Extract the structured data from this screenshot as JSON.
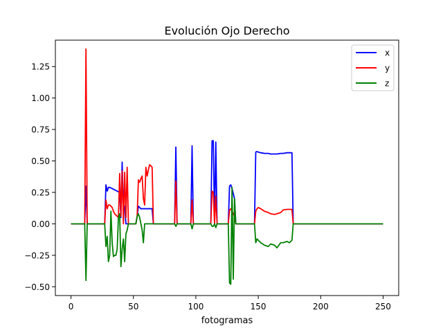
{
  "chart_data": {
    "type": "line",
    "title": "Evolución Ojo Derecho",
    "xlabel": "fotogramas",
    "ylabel": "",
    "xlim": [
      -12.5,
      262.5
    ],
    "ylim": [
      -0.57,
      1.46
    ],
    "xticks": [
      0,
      50,
      100,
      150,
      200,
      250
    ],
    "xtick_labels": [
      "0",
      "50",
      "100",
      "150",
      "200",
      "250"
    ],
    "yticks": [
      -0.5,
      -0.25,
      0.0,
      0.25,
      0.5,
      0.75,
      1.0,
      1.25
    ],
    "ytick_labels": [
      "−0.50",
      "−0.25",
      "0.00",
      "0.25",
      "0.50",
      "0.75",
      "1.00",
      "1.25"
    ],
    "legend": "upper right",
    "grid": false,
    "series": [
      {
        "name": "x",
        "color": "#0000ff",
        "x": [
          0,
          11,
          12,
          13,
          27,
          28,
          29,
          30,
          31,
          32,
          33,
          34,
          35,
          36,
          37,
          38,
          39,
          40,
          41,
          42,
          43,
          44,
          45,
          46,
          47,
          52,
          53,
          54,
          55,
          56,
          57,
          58,
          59,
          60,
          61,
          62,
          63,
          64,
          65,
          66,
          83,
          84,
          85,
          96,
          97,
          98,
          112,
          113,
          114,
          115,
          116,
          117,
          126,
          127,
          128,
          129,
          130,
          131,
          132,
          147,
          148,
          149,
          150,
          152,
          155,
          158,
          160,
          163,
          165,
          168,
          170,
          173,
          175,
          177,
          178,
          250
        ],
        "y": [
          0.0,
          0.0,
          0.3,
          0.0,
          0.0,
          0.31,
          0.26,
          0.29,
          0.29,
          0.285,
          0.28,
          0.275,
          0.27,
          0.265,
          0.26,
          0.255,
          0.25,
          0.05,
          0.49,
          0.1,
          0.14,
          0.0,
          0.0,
          0.0,
          0.0,
          0.0,
          0.06,
          0.14,
          0.13,
          0.12,
          0.12,
          0.12,
          0.12,
          0.12,
          0.12,
          0.12,
          0.12,
          0.12,
          0.12,
          0.0,
          0.0,
          0.61,
          0.0,
          0.0,
          0.62,
          0.0,
          0.0,
          0.66,
          0.66,
          0.0,
          0.65,
          0.0,
          0.0,
          0.3,
          0.31,
          0.28,
          0.24,
          0.2,
          0.0,
          0.0,
          0.57,
          0.575,
          0.57,
          0.565,
          0.56,
          0.56,
          0.555,
          0.555,
          0.555,
          0.56,
          0.56,
          0.565,
          0.565,
          0.565,
          0.0,
          0.0
        ]
      },
      {
        "name": "y",
        "color": "#ff0000",
        "x": [
          0,
          11,
          12,
          13,
          27,
          28,
          29,
          30,
          31,
          32,
          33,
          34,
          35,
          36,
          37,
          38,
          39,
          40,
          41,
          42,
          43,
          44,
          45,
          46,
          47,
          52,
          53,
          54,
          55,
          56,
          57,
          58,
          59,
          60,
          61,
          62,
          63,
          64,
          65,
          66,
          83,
          84,
          85,
          96,
          97,
          98,
          112,
          113,
          114,
          115,
          116,
          117,
          126,
          127,
          128,
          129,
          130,
          131,
          132,
          147,
          148,
          149,
          150,
          152,
          155,
          158,
          160,
          163,
          165,
          168,
          170,
          173,
          175,
          177,
          178,
          250
        ],
        "y": [
          0.0,
          0.0,
          1.39,
          0.0,
          0.0,
          0.19,
          0.12,
          0.15,
          0.15,
          0.14,
          0.13,
          0.1,
          0.08,
          0.07,
          0.06,
          0.05,
          0.4,
          0.06,
          0.42,
          0.0,
          0.41,
          0.05,
          0.45,
          0.0,
          0.0,
          0.0,
          0.06,
          0.35,
          0.33,
          0.36,
          0.38,
          0.2,
          0.15,
          0.45,
          0.38,
          0.43,
          0.47,
          0.46,
          0.45,
          0.0,
          0.0,
          0.34,
          0.0,
          0.0,
          0.19,
          0.0,
          0.0,
          0.26,
          0.25,
          0.0,
          0.22,
          0.0,
          0.0,
          0.11,
          0.12,
          0.1,
          0.08,
          0.06,
          0.0,
          0.0,
          0.1,
          0.12,
          0.13,
          0.12,
          0.1,
          0.09,
          0.08,
          0.075,
          0.08,
          0.09,
          0.11,
          0.115,
          0.115,
          0.115,
          0.0,
          0.0
        ]
      },
      {
        "name": "z",
        "color": "#008000",
        "x": [
          0,
          11,
          12,
          13,
          27,
          28,
          29,
          30,
          31,
          32,
          33,
          34,
          35,
          36,
          37,
          38,
          39,
          40,
          41,
          42,
          43,
          44,
          45,
          46,
          47,
          52,
          53,
          54,
          55,
          56,
          57,
          58,
          59,
          60,
          61,
          62,
          63,
          64,
          65,
          66,
          83,
          84,
          85,
          96,
          97,
          98,
          112,
          113,
          114,
          115,
          116,
          117,
          126,
          127,
          128,
          129,
          130,
          131,
          132,
          147,
          148,
          149,
          150,
          152,
          155,
          158,
          160,
          163,
          165,
          168,
          170,
          173,
          175,
          177,
          178,
          250
        ],
        "y": [
          0.0,
          0.0,
          -0.45,
          0.0,
          0.0,
          -0.18,
          -0.1,
          -0.3,
          -0.25,
          0.1,
          -0.15,
          -0.26,
          -0.25,
          -0.25,
          -0.2,
          0.05,
          0.08,
          -0.34,
          -0.2,
          -0.12,
          -0.3,
          -0.08,
          -0.05,
          0.0,
          0.0,
          0.0,
          0.06,
          0.08,
          0.05,
          0.0,
          -0.05,
          -0.15,
          0.0,
          0.0,
          0.0,
          0.0,
          0.0,
          0.0,
          0.0,
          0.0,
          0.0,
          -0.02,
          0.0,
          0.0,
          -0.04,
          0.0,
          0.0,
          -0.02,
          -0.02,
          0.0,
          -0.03,
          0.0,
          0.0,
          -0.47,
          -0.48,
          0.29,
          -0.44,
          0.2,
          0.0,
          0.0,
          -0.15,
          -0.12,
          -0.13,
          -0.15,
          -0.17,
          -0.18,
          -0.16,
          -0.17,
          -0.19,
          -0.15,
          -0.15,
          -0.14,
          -0.15,
          -0.13,
          0.0,
          0.0
        ]
      }
    ]
  }
}
